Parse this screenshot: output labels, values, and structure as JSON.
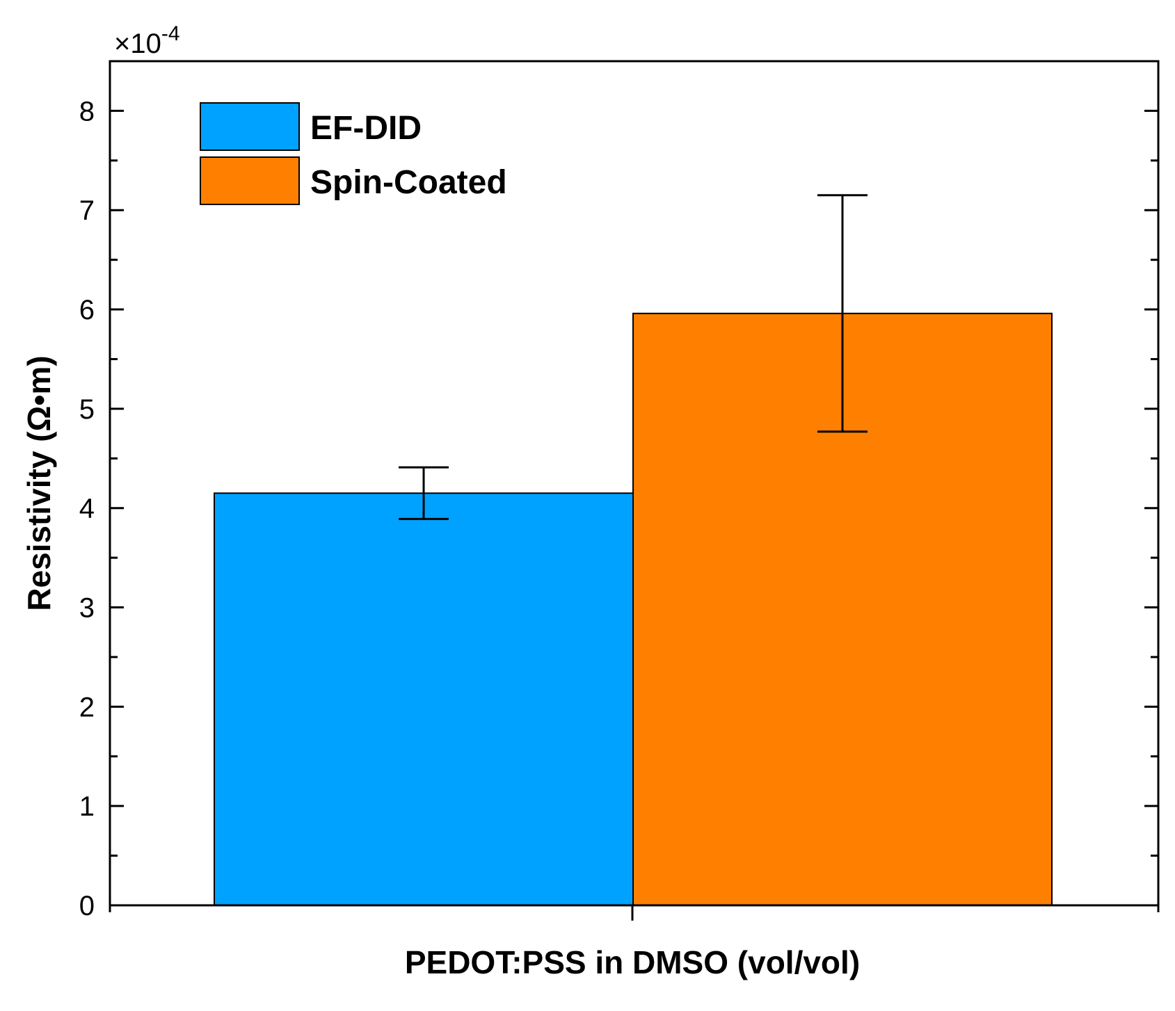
{
  "chart_data": {
    "type": "bar",
    "title": "",
    "xlabel": "PEDOT:PSS in DMSO (vol/vol)",
    "ylabel": "Resistivity (Ω•m)",
    "y_multiplier_base": "×10",
    "y_multiplier_exponent": "-4",
    "ylim": [
      0,
      8.5
    ],
    "yticks": [
      0,
      1,
      2,
      3,
      4,
      5,
      6,
      7,
      8
    ],
    "yticks_minor_step": 0.5,
    "grid": false,
    "legend_position": "top-left",
    "categories": [
      ""
    ],
    "series": [
      {
        "name": "EF-DID",
        "color": "#00a2ff",
        "values": [
          4.15
        ],
        "error": [
          0.26
        ]
      },
      {
        "name": "Spin-Coated",
        "color": "#ff8000",
        "values": [
          5.96
        ],
        "error": [
          1.19
        ]
      }
    ]
  }
}
